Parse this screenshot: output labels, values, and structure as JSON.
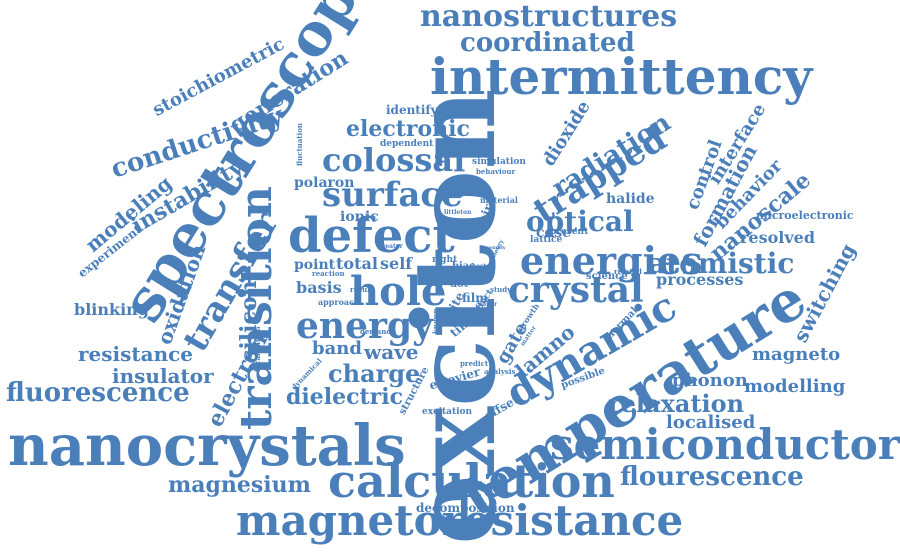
{
  "color": "#4a7fba",
  "words": [
    "exciton",
    "nanocrystals",
    "temperature",
    "spectroscopy",
    "intermittency",
    "magnetoresistance",
    "semiconductor",
    "calculation",
    "defect",
    "dynamic",
    "transition",
    "energies",
    "crystal",
    "energy",
    "surface",
    "colossal",
    "trapped",
    "hole",
    "transfer",
    "nanostructures",
    "fluorescence",
    "flourescence",
    "atomistic",
    "optical",
    "radiation",
    "charge",
    "dielectric",
    "relaxation",
    "conductivity",
    "magnesium",
    "resistance",
    "coordinated",
    "electronic",
    "generation",
    "electron",
    "insulator",
    "instability",
    "modelling",
    "phonon",
    "magneto",
    "silicon",
    "oxidation",
    "nanoscale",
    "switching",
    "formation",
    "modeling",
    "stoichiometric",
    "wave",
    "band",
    "blinking",
    "localised",
    "processes",
    "resolved",
    "interface",
    "control",
    "behavior",
    "polaron",
    "dioxide",
    "ionic",
    "total",
    "self",
    "basis",
    "point",
    "lamno",
    "gate",
    "microelectronic",
    "halide",
    "experiment",
    "identifying",
    "decomposition",
    "cdse",
    "pair",
    "simulation",
    "oxygen",
    "material",
    "dependent",
    "film",
    "offset",
    "excitation",
    "fluctuation",
    "science",
    "related",
    "lattice",
    "present",
    "structure",
    "elsevier",
    "predict",
    "analysis",
    "possible",
    "thermal",
    "localisation",
    "dynamical",
    "demand",
    "approach",
    "greater",
    "reaction",
    "right",
    "bias",
    "dot",
    "best",
    "site",
    "time",
    "effect",
    "growth",
    "matter",
    "paper",
    "known",
    "behaviour",
    "result",
    "theory",
    "littleton",
    "study",
    "assembly"
  ]
}
